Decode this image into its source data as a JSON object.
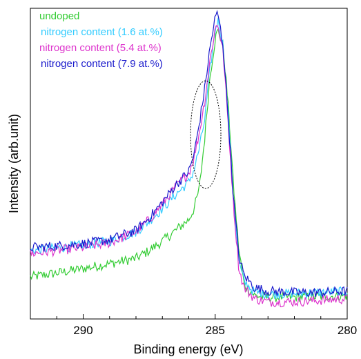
{
  "chart_data": {
    "type": "line",
    "title": "",
    "xlabel": "Binding energy (eV)",
    "ylabel": "Intensity (arb.unit)",
    "xlim": [
      292,
      280
    ],
    "x_reversed": true,
    "ylim": [
      0,
      100
    ],
    "yticks_shown": false,
    "xticks": [
      290,
      285,
      280
    ],
    "xtick_labels": [
      "290",
      "285",
      "280"
    ],
    "grid": false,
    "legend_position": "top-left",
    "annotation": "dotted ellipse around shoulder near 285.5 eV",
    "series": [
      {
        "name": "undoped",
        "color": "#33cc33",
        "x": [
          292.0,
          291.0,
          290.0,
          289.0,
          288.0,
          287.5,
          287.0,
          286.5,
          286.0,
          285.8,
          285.6,
          285.4,
          285.2,
          285.0,
          284.9,
          284.7,
          284.5,
          284.3,
          284.1,
          283.9,
          283.5,
          283.0,
          282.0,
          281.0,
          280.0
        ],
        "y": [
          13.5,
          14.8,
          16.2,
          17.8,
          19.5,
          22.0,
          25.0,
          28.5,
          32.0,
          35.5,
          42.0,
          58.0,
          78.0,
          90.0,
          93.0,
          88.0,
          68.0,
          42.0,
          22.0,
          11.0,
          7.5,
          7.0,
          7.0,
          7.2,
          7.5
        ]
      },
      {
        "name": "nitrogen content (1.6 at.%)",
        "color": "#33ccff",
        "x": [
          292.0,
          291.0,
          290.0,
          289.0,
          288.0,
          287.5,
          287.0,
          286.5,
          286.0,
          285.8,
          285.6,
          285.4,
          285.2,
          285.0,
          284.9,
          284.7,
          284.5,
          284.3,
          284.1,
          283.9,
          283.5,
          283.0,
          282.0,
          281.0,
          280.0
        ],
        "y": [
          22.0,
          22.8,
          23.8,
          25.0,
          28.0,
          31.5,
          35.5,
          40.0,
          44.0,
          48.0,
          55.0,
          64.0,
          80.0,
          93.0,
          96.5,
          88.0,
          65.0,
          38.0,
          18.0,
          12.0,
          8.5,
          8.0,
          8.2,
          8.5,
          8.8
        ]
      },
      {
        "name": "nitrogen content (5.4 at.%)",
        "color": "#dd33cc",
        "x": [
          292.0,
          291.0,
          290.0,
          289.0,
          288.0,
          287.5,
          287.0,
          286.5,
          286.0,
          285.8,
          285.6,
          285.4,
          285.2,
          285.0,
          284.9,
          284.7,
          284.5,
          284.3,
          284.1,
          283.9,
          283.5,
          283.0,
          282.0,
          281.0,
          280.0
        ],
        "y": [
          21.0,
          22.0,
          23.0,
          24.5,
          28.0,
          32.0,
          37.0,
          42.5,
          47.0,
          52.0,
          60.0,
          70.0,
          83.0,
          93.5,
          95.0,
          86.0,
          62.0,
          36.0,
          16.0,
          10.0,
          6.5,
          5.5,
          5.5,
          6.0,
          6.5
        ]
      },
      {
        "name": "nitrogen content (7.9 at.%)",
        "color": "#1a1acc",
        "x": [
          292.0,
          291.0,
          290.0,
          289.0,
          288.0,
          287.5,
          287.0,
          286.5,
          286.0,
          285.8,
          285.6,
          285.4,
          285.2,
          285.0,
          284.9,
          284.7,
          284.5,
          284.3,
          284.1,
          283.9,
          283.5,
          283.0,
          282.0,
          281.0,
          280.0
        ],
        "y": [
          23.0,
          23.5,
          24.2,
          25.5,
          28.5,
          32.5,
          37.5,
          43.0,
          47.5,
          53.0,
          63.0,
          74.0,
          87.0,
          97.0,
          98.5,
          88.0,
          64.0,
          38.0,
          20.0,
          14.0,
          10.0,
          9.0,
          8.5,
          8.5,
          9.0
        ]
      }
    ]
  }
}
